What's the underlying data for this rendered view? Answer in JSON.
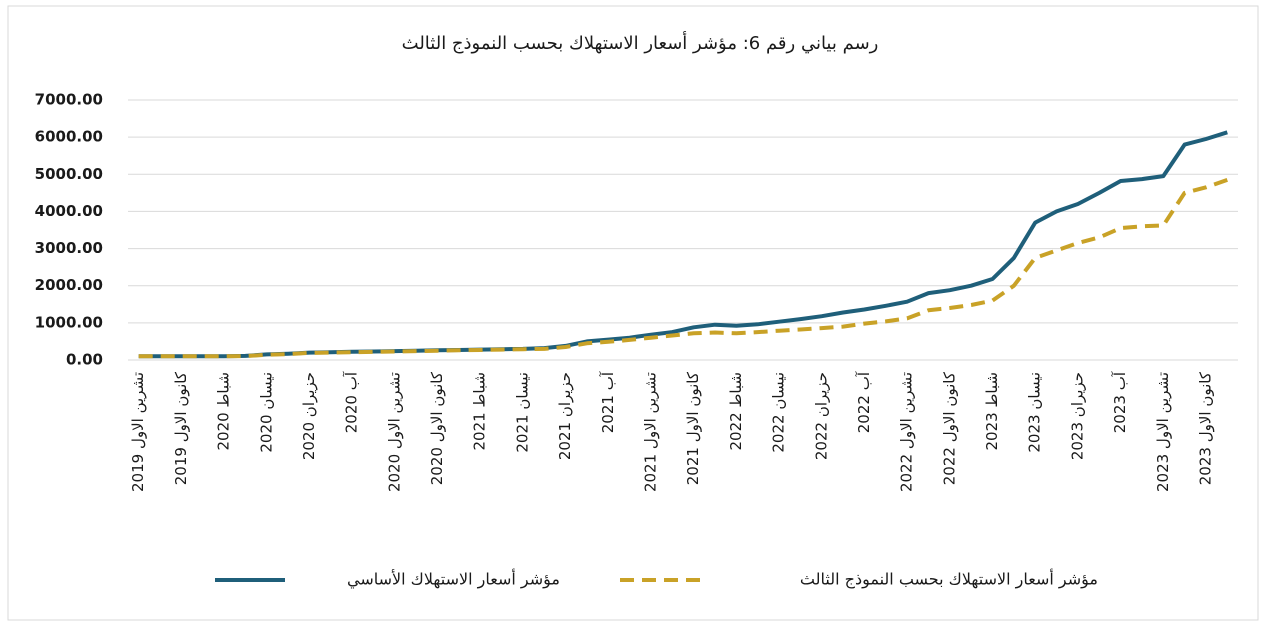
{
  "chart_data": {
    "type": "line",
    "title": "رسم بياني رقم 6: مؤشر أسعار الاستهلاك بحسب النموذج الثالث",
    "categories": [
      "تشرين الاول 2019",
      null,
      "كانون الاول 2019",
      null,
      "شباط 2020",
      null,
      "نيسان 2020",
      null,
      "حزيران 2020",
      null,
      "آب 2020",
      null,
      "تشرين الاول 2020",
      null,
      "كانون الاول 2020",
      null,
      "شباط 2021",
      null,
      "نيسان 2021",
      null,
      "حزيران 2021",
      null,
      "آب 2021",
      null,
      "تشرين الاول 2021",
      null,
      "كانون الاول 2021",
      null,
      "شباط 2022",
      null,
      "نيسان 2022",
      null,
      "حزيران 2022",
      null,
      "آب 2022",
      null,
      "تشرين الاول 2022",
      null,
      "كانون الاول 2022",
      null,
      "شباط 2023",
      null,
      "نيسان 2023",
      null,
      "حزيران 2023",
      null,
      "آب 2023",
      null,
      "تشرين الاول 2023",
      null,
      "كانون الاول 2023",
      null
    ],
    "series": [
      {
        "name": "مؤشر أسعار الاستهلاك الأساسي",
        "color": "#1f5f7a",
        "dashed": false,
        "values": [
          100,
          100,
          100,
          100,
          100,
          110,
          150,
          170,
          200,
          210,
          220,
          230,
          240,
          250,
          260,
          270,
          280,
          290,
          300,
          320,
          380,
          500,
          550,
          600,
          680,
          750,
          880,
          950,
          920,
          960,
          1030,
          1100,
          1180,
          1280,
          1360,
          1460,
          1570,
          1800,
          1880,
          2000,
          2180,
          2750,
          3700,
          4000,
          4200,
          4500,
          4820,
          4870,
          4950,
          5800,
          5950,
          6130
        ]
      },
      {
        "name": "مؤشر أسعار الاستهلاك بحسب النموذج الثالث",
        "color": "#c9a227",
        "dashed": true,
        "values": [
          100,
          100,
          100,
          100,
          100,
          105,
          140,
          160,
          190,
          200,
          210,
          220,
          230,
          240,
          250,
          260,
          270,
          280,
          290,
          300,
          350,
          450,
          490,
          540,
          600,
          660,
          720,
          740,
          720,
          750,
          790,
          820,
          860,
          900,
          980,
          1040,
          1120,
          1340,
          1400,
          1480,
          1600,
          2000,
          2750,
          2950,
          3150,
          3300,
          3550,
          3600,
          3620,
          4500,
          4650,
          4850
        ]
      }
    ],
    "ylim": [
      0,
      7000
    ],
    "yticks": [
      {
        "value": 0,
        "label": "0.00"
      },
      {
        "value": 1000,
        "label": "1000.00"
      },
      {
        "value": 2000,
        "label": "2000.00"
      },
      {
        "value": 3000,
        "label": "3000.00"
      },
      {
        "value": 4000,
        "label": "4000.00"
      },
      {
        "value": 5000,
        "label": "5000.00"
      },
      {
        "value": 6000,
        "label": "6000.00"
      },
      {
        "value": 7000,
        "label": "7000.00"
      }
    ],
    "grid": true,
    "legend": "bottom"
  }
}
